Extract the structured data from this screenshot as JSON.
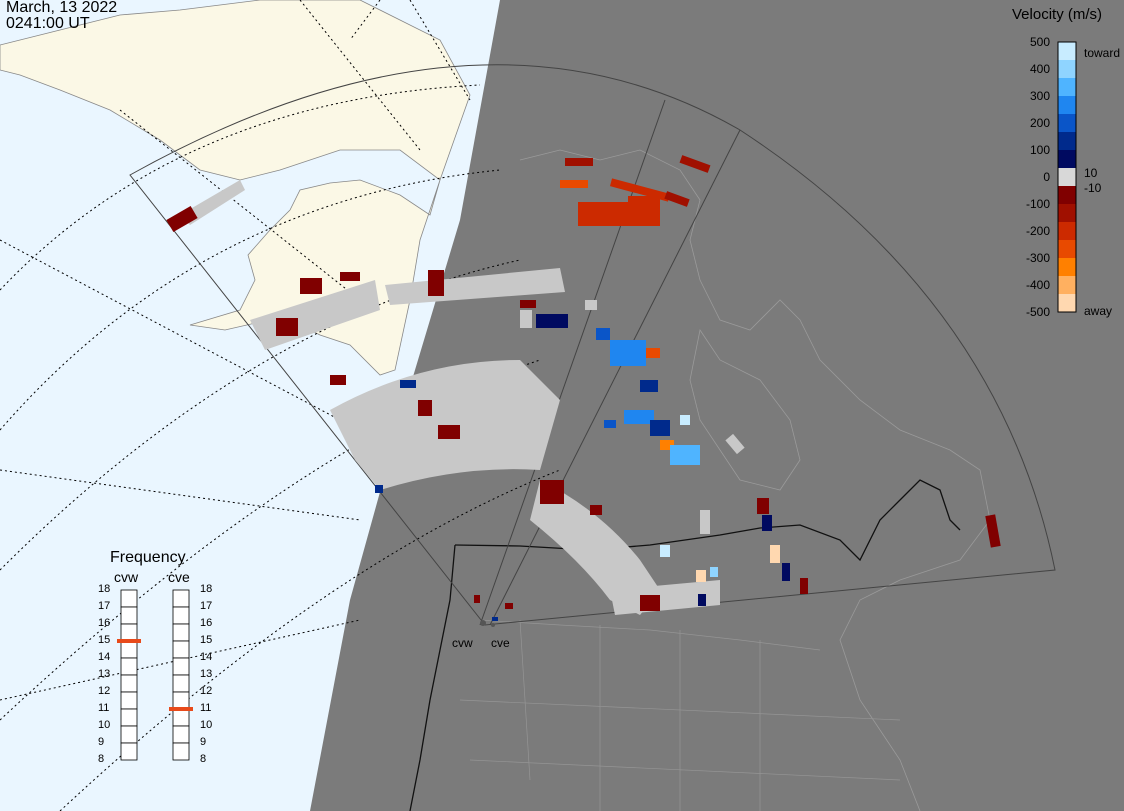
{
  "date": "March, 13 2022",
  "time": "0241:00 UT",
  "legend": {
    "title": "Velocity (m/s)",
    "ticks": [
      "500",
      "400",
      "300",
      "200",
      "100",
      "0",
      "-100",
      "-200",
      "-300",
      "-400",
      "-500"
    ],
    "toward_label": "toward",
    "away_label": "away",
    "pos_threshold": "10",
    "neg_threshold": "-10",
    "colors": [
      "#c8ecff",
      "#8fd4ff",
      "#4fb4ff",
      "#1f86f0",
      "#0a55c8",
      "#002a8c",
      "#000a60",
      "#d8d8d8",
      "#800000",
      "#a01000",
      "#cc2a00",
      "#e84a00",
      "#ff8000",
      "#ffb060",
      "#ffd8b0"
    ]
  },
  "frequency": {
    "title": "Frequency",
    "radars": [
      {
        "name": "cvw",
        "value": 15
      },
      {
        "name": "cve",
        "value": 11
      }
    ],
    "scale": [
      "18",
      "17",
      "16",
      "15",
      "14",
      "13",
      "12",
      "11",
      "10",
      "9",
      "8"
    ]
  },
  "sites": [
    {
      "name": "cvw"
    },
    {
      "name": "cve"
    }
  ],
  "colors": {
    "night": "#7b7b7b",
    "day": "#eaf6ff",
    "land_day": "#fbf8e6",
    "ground_scatter": "#c8c8c8",
    "fov_outline": "#444444"
  }
}
